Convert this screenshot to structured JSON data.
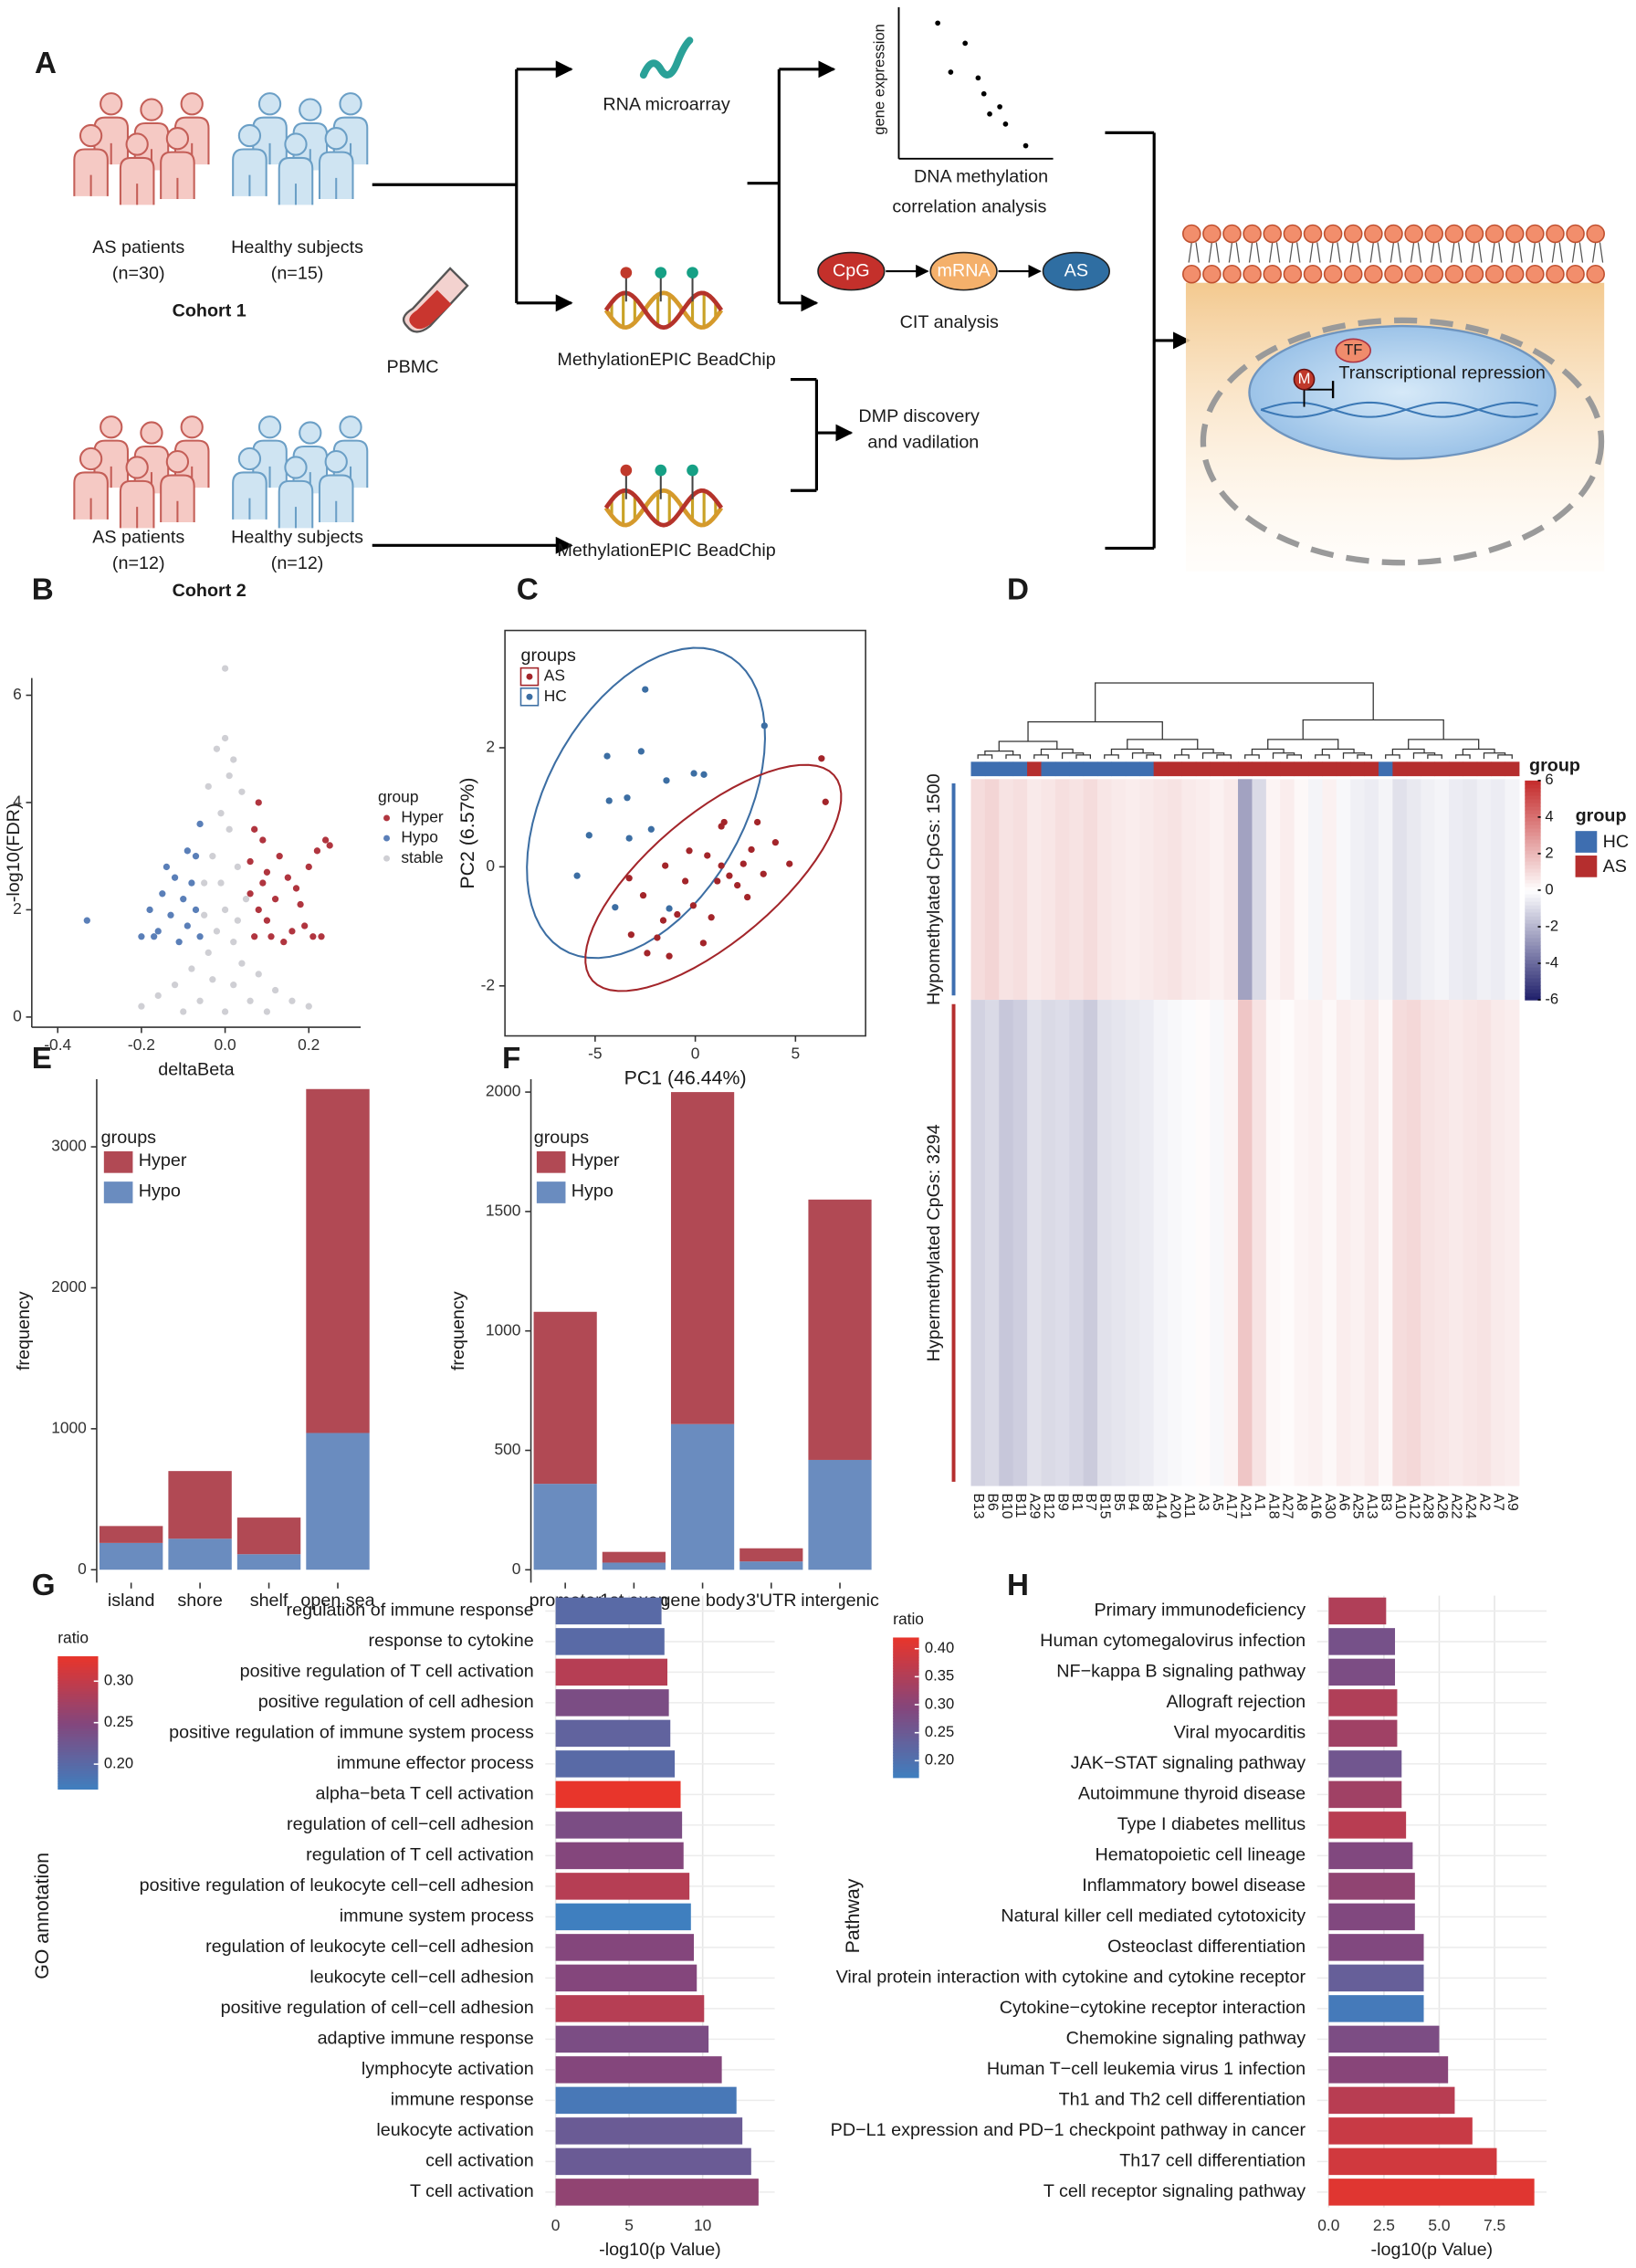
{
  "diagram": {
    "panel": "A",
    "cohort1": {
      "as": "AS patients",
      "as_n": "(n=30)",
      "hs": "Healthy subjects",
      "hs_n": "(n=15)",
      "title": "Cohort 1"
    },
    "cohort2": {
      "as": "AS patients",
      "as_n": "(n=12)",
      "hs": "Healthy subjects",
      "hs_n": "(n=12)",
      "title": "Cohort 2"
    },
    "pbmc": "PBMC",
    "rna": "RNA microarray",
    "epic1": "MethylationEPIC BeadChip",
    "epic2": "MethylationEPIC BeadChip",
    "corr_y": "gene expression",
    "corr_x": "DNA methylation",
    "corr_title": "correlation analysis",
    "cpg": "CpG",
    "mrna": "mRNA",
    "as": "AS",
    "cit": "CIT analysis",
    "dmp1": "DMP discovery",
    "dmp2": "and vadilation",
    "tf": "TF",
    "m": "M",
    "repression": "Transcriptional repression"
  },
  "chart_data": [
    {
      "type": "scatter",
      "panel": "B",
      "x_label": "deltaBeta",
      "y_label": "-log10(FDR)",
      "legend_title": "group",
      "frame": false,
      "xlim": [
        -0.462,
        0.324
      ],
      "ylim": [
        -0.19,
        6.32
      ],
      "xticks": [
        -0.4,
        -0.2,
        {
          "value": 0,
          "label": "0.0"
        },
        0.2
      ],
      "yticks": [
        0,
        2,
        4,
        6
      ],
      "series": [
        {
          "name": "Hyper",
          "color": "#b0353f",
          "x": [
            0.07,
            0.08,
            0.09,
            0.1,
            0.12,
            0.13,
            0.15,
            0.16,
            0.18,
            0.2,
            0.22,
            0.24,
            0.25,
            0.19,
            0.21,
            0.14,
            0.07,
            0.08,
            0.06,
            0.11,
            0.17,
            0.23,
            0.09,
            0.06,
            0.1
          ],
          "y": [
            1.5,
            2.0,
            2.5,
            1.8,
            2.2,
            3.0,
            2.6,
            1.6,
            2.1,
            2.8,
            3.1,
            3.3,
            3.2,
            1.7,
            1.5,
            1.4,
            3.5,
            4.0,
            2.9,
            1.5,
            2.4,
            1.5,
            3.3,
            2.3,
            2.7
          ]
        },
        {
          "name": "Hypo",
          "color": "#5a7fb8",
          "x": [
            -0.06,
            -0.07,
            -0.08,
            -0.09,
            -0.1,
            -0.12,
            -0.13,
            -0.15,
            -0.16,
            -0.18,
            -0.2,
            -0.11,
            -0.07,
            -0.06,
            -0.33,
            -0.14,
            -0.09,
            -0.17
          ],
          "y": [
            1.5,
            2.0,
            2.5,
            1.7,
            2.2,
            2.6,
            1.9,
            2.3,
            1.6,
            2.0,
            1.5,
            1.4,
            3.0,
            3.6,
            1.8,
            2.8,
            3.1,
            1.5
          ]
        },
        {
          "name": "stable",
          "color": "#cfcfd4",
          "x": [
            0,
            0,
            -0.02,
            0.02,
            -0.04,
            0.04,
            -0.01,
            0.01,
            -0.03,
            0.03,
            -0.05,
            0.05,
            0,
            -0.02,
            0.02,
            -0.04,
            0.04,
            -0.08,
            0.08,
            -0.12,
            0.12,
            -0.16,
            0.16,
            -0.2,
            0.2,
            -0.06,
            0.06,
            0,
            -0.1,
            0.1,
            0.02,
            -0.03,
            0.01,
            -0.01,
            0.03,
            -0.05
          ],
          "y": [
            6.5,
            5.2,
            5.0,
            4.8,
            4.3,
            4.2,
            3.8,
            3.5,
            3.0,
            2.8,
            2.5,
            2.2,
            2.0,
            1.6,
            1.4,
            1.2,
            1.0,
            0.9,
            0.8,
            0.6,
            0.5,
            0.4,
            0.3,
            0.2,
            0.2,
            0.3,
            0.3,
            0.1,
            0.1,
            0.1,
            0.6,
            0.7,
            4.5,
            2.5,
            1.8,
            1.9
          ]
        }
      ]
    },
    {
      "type": "scatter",
      "panel": "C",
      "x_label": "PC1 (46.44%)",
      "y_label": "PC2 (6.57%)",
      "legend_title": "groups",
      "frame": true,
      "ellipse": true,
      "xlim": [
        -9.5,
        8.5
      ],
      "ylim": [
        -2.84,
        3.97
      ],
      "xticks": [
        -5,
        0,
        5
      ],
      "yticks": [
        -2,
        0,
        2
      ],
      "series": [
        {
          "name": "AS",
          "color": "#a3252a",
          "x": [
            6.3,
            6.5,
            1.44,
            1.3,
            2.8,
            4.0,
            4.7,
            3.4,
            1.3,
            0.6,
            -0.3,
            -1.5,
            -0.5,
            1.1,
            2.1,
            -0.1,
            -0.9,
            0.8,
            2.6,
            -2.6,
            -3.3,
            -1.6,
            -1.9,
            -1.3,
            0.4,
            -3.2,
            1.7,
            3.1,
            -2.4,
            2.4
          ],
          "y": [
            1.82,
            1.09,
            0.75,
            0.68,
            0.29,
            0.41,
            0.05,
            -0.12,
            0.02,
            0.19,
            0.27,
            0.02,
            -0.24,
            -0.24,
            -0.31,
            -0.65,
            -0.8,
            -0.85,
            -0.51,
            -0.48,
            -0.19,
            -0.9,
            -1.19,
            -1.5,
            -1.28,
            -1.14,
            -0.15,
            0.75,
            -1.45,
            0.05
          ]
        },
        {
          "name": "HC",
          "color": "#3c6ea3",
          "x": [
            -2.5,
            3.45,
            0.43,
            -1.44,
            -0.07,
            -4.4,
            -2.7,
            -3.4,
            -4.3,
            -5.3,
            -3.3,
            -2.2,
            -5.9,
            -4.0,
            -1.3
          ],
          "y": [
            2.98,
            2.37,
            1.55,
            1.45,
            1.57,
            1.86,
            1.94,
            1.16,
            1.11,
            0.53,
            0.48,
            0.63,
            -0.15,
            -0.68,
            -0.7
          ]
        }
      ]
    },
    {
      "type": "heatmap",
      "panel": "D",
      "colorbar_title": "group",
      "legend_title": "group",
      "columns": [
        "B13",
        "B6",
        "B10",
        "B11",
        "A29",
        "B12",
        "B9",
        "B1",
        "B7",
        "B15",
        "B5",
        "B4",
        "B8",
        "A14",
        "A20",
        "A11",
        "A3",
        "A5",
        "A17",
        "A21",
        "A1",
        "A18",
        "A27",
        "A8",
        "A16",
        "A30",
        "A6",
        "A25",
        "A13",
        "B3",
        "A10",
        "A12",
        "A28",
        "A26",
        "A22",
        "A24",
        "A2",
        "A7",
        "A9"
      ],
      "column_groups": [
        "HC",
        "HC",
        "HC",
        "HC",
        "AS",
        "HC",
        "HC",
        "HC",
        "HC",
        "HC",
        "HC",
        "HC",
        "HC",
        "AS",
        "AS",
        "AS",
        "AS",
        "AS",
        "AS",
        "AS",
        "AS",
        "AS",
        "AS",
        "AS",
        "AS",
        "AS",
        "AS",
        "AS",
        "AS",
        "HC",
        "AS",
        "AS",
        "AS",
        "AS",
        "AS",
        "AS",
        "AS",
        "AS",
        "AS"
      ],
      "groups": [
        {
          "name": "HC",
          "color": "#3e6eb0"
        },
        {
          "name": "AS",
          "color": "#b52e2e"
        }
      ],
      "row_groups": [
        {
          "label": "Hypomethylated CpGs: 1500",
          "color": "#3e6eb0"
        },
        {
          "label": "Hypermethylated CpGs: 3294",
          "color": "#b52e2e"
        }
      ],
      "values": [
        [
          1.0,
          1.2,
          0.8,
          0.9,
          0.6,
          0.7,
          0.9,
          0.8,
          1.0,
          0.7,
          0.6,
          0.5,
          0.6,
          0.7,
          0.8,
          0.6,
          0.5,
          0.4,
          0.6,
          -2.5,
          -1.0,
          0.3,
          0.5,
          0.2,
          -0.3,
          0.4,
          -0.2,
          -0.4,
          -0.5,
          -0.3,
          -0.8,
          -0.6,
          -0.4,
          -0.3,
          -0.5,
          -0.6,
          -0.4,
          -0.5,
          -0.3
        ],
        [
          -1.2,
          -1.0,
          -1.5,
          -1.3,
          -0.8,
          -1.0,
          -0.9,
          -1.1,
          -1.4,
          -0.8,
          -0.7,
          -0.6,
          -0.5,
          -0.3,
          -0.2,
          -0.1,
          0.1,
          -0.2,
          0.3,
          1.6,
          0.8,
          0.2,
          0.1,
          0.3,
          0.4,
          0.2,
          0.5,
          0.4,
          0.6,
          0.2,
          1.0,
          1.1,
          0.8,
          0.7,
          0.6,
          0.7,
          0.8,
          0.6,
          0.5
        ]
      ],
      "clim": [
        -6,
        6
      ],
      "cticks": [
        -6,
        -4,
        -2,
        0,
        2,
        4,
        6
      ],
      "colors": [
        "#1f1f6b",
        "#ffffff",
        "#c42b2b"
      ]
    },
    {
      "type": "stacked_bar",
      "panel": "E",
      "y_label": "frequency",
      "legend_title": "groups",
      "categories": [
        "island",
        "shore",
        "shelf",
        "open sea"
      ],
      "ylim": [
        -92,
        3480
      ],
      "yticks": [
        0,
        1000,
        2000,
        3000
      ],
      "series": [
        {
          "name": "Hyper",
          "color": "#b14954",
          "values": [
            120,
            480,
            260,
            2440
          ]
        },
        {
          "name": "Hypo",
          "color": "#6a8cbf",
          "values": [
            190,
            220,
            110,
            970
          ]
        }
      ]
    },
    {
      "type": "stacked_bar",
      "panel": "F",
      "y_label": "frequency",
      "legend_title": "groups",
      "categories": [
        "promotor",
        "1st exon",
        "gene body",
        "3'UTR",
        "intergenic"
      ],
      "ylim": [
        -54,
        2054
      ],
      "yticks": [
        0,
        500,
        1000,
        1500,
        2000
      ],
      "series": [
        {
          "name": "Hyper",
          "color": "#b14954",
          "values": [
            720,
            45,
            1390,
            55,
            1090
          ]
        },
        {
          "name": "Hypo",
          "color": "#6a8cbf",
          "values": [
            360,
            30,
            610,
            35,
            460
          ]
        }
      ]
    },
    {
      "type": "hbar",
      "panel": "G",
      "x_label": "-log10(p Value)",
      "y_label": "GO annotation",
      "legend_title": "ratio",
      "categories": [
        "regulation of immune response",
        "response to cytokine",
        "positive regulation of T cell activation",
        "positive regulation of cell adhesion",
        "positive regulation of immune system process",
        "immune effector process",
        "alpha−beta T cell activation",
        "regulation of cell−cell adhesion",
        "regulation of T cell activation",
        "positive regulation of leukocyte cell−cell adhesion",
        "immune system process",
        "regulation of leukocyte cell−cell adhesion",
        "leukocyte cell−cell adhesion",
        "positive regulation of cell−cell adhesion",
        "adaptive immune response",
        "lymphocyte activation",
        "immune response",
        "leukocyte activation",
        "cell activation",
        "T cell activation"
      ],
      "values": [
        7.2,
        7.4,
        7.6,
        7.7,
        7.8,
        8.1,
        8.5,
        8.6,
        8.7,
        9.1,
        9.2,
        9.4,
        9.6,
        10.1,
        10.4,
        11.3,
        12.3,
        12.7,
        13.3,
        13.8
      ],
      "ratios": [
        0.2,
        0.2,
        0.29,
        0.24,
        0.21,
        0.2,
        0.33,
        0.24,
        0.25,
        0.29,
        0.17,
        0.25,
        0.25,
        0.29,
        0.24,
        0.25,
        0.18,
        0.22,
        0.22,
        0.26
      ],
      "xlim": [
        -0.7,
        14.9
      ],
      "xticks": [
        0,
        5,
        10
      ],
      "color_scale": [
        "#3f7fbf",
        "#84467c",
        "#e8352b"
      ],
      "ratio_lim": [
        0.17,
        0.33
      ],
      "ratio_ticks": [
        {
          "value": 0.2,
          "label": "0.20"
        },
        0.25,
        {
          "value": 0.3,
          "label": "0.30"
        }
      ]
    },
    {
      "type": "hbar",
      "panel": "H",
      "x_label": "-log10(p Value)",
      "y_label": "Pathway",
      "legend_title": "ratio",
      "categories": [
        "Primary immunodeficiency",
        "Human cytomegalovirus infection",
        "NF−kappa B signaling pathway",
        "Allograft rejection",
        "Viral myocarditis",
        "JAK−STAT signaling pathway",
        "Autoimmune thyroid disease",
        "Type I diabetes mellitus",
        "Hematopoietic cell lineage",
        "Inflammatory bowel disease",
        "Natural killer cell mediated cytotoxicity",
        "Osteoclast differentiation",
        "Viral protein interaction with cytokine and cytokine receptor",
        "Cytokine−cytokine receptor interaction",
        "Chemokine signaling pathway",
        "Human T−cell leukemia virus 1 infection",
        "Th1 and Th2 cell differentiation",
        "PD−L1 expression and PD−1 checkpoint pathway in cancer",
        "Th17 cell differentiation",
        "T cell receptor signaling pathway"
      ],
      "values": [
        2.6,
        3.0,
        3.0,
        3.1,
        3.1,
        3.3,
        3.3,
        3.5,
        3.8,
        3.9,
        3.9,
        4.3,
        4.3,
        4.3,
        5.0,
        5.4,
        5.7,
        6.5,
        7.6,
        9.3
      ],
      "ratios": [
        0.35,
        0.27,
        0.28,
        0.35,
        0.33,
        0.26,
        0.33,
        0.36,
        0.29,
        0.31,
        0.29,
        0.29,
        0.24,
        0.18,
        0.28,
        0.3,
        0.36,
        0.38,
        0.39,
        0.41
      ],
      "xlim": [
        -0.52,
        9.85
      ],
      "xticks": [
        {
          "value": 0,
          "label": "0.0"
        },
        2.5,
        {
          "value": 5,
          "label": "5.0"
        },
        7.5
      ],
      "color_scale": [
        "#3f7fbf",
        "#84467c",
        "#e8352b"
      ],
      "ratio_lim": [
        0.17,
        0.42
      ],
      "ratio_ticks": [
        {
          "value": 0.2,
          "label": "0.20"
        },
        0.25,
        {
          "value": 0.3,
          "label": "0.30"
        },
        0.35,
        {
          "value": 0.4,
          "label": "0.40"
        }
      ]
    }
  ]
}
